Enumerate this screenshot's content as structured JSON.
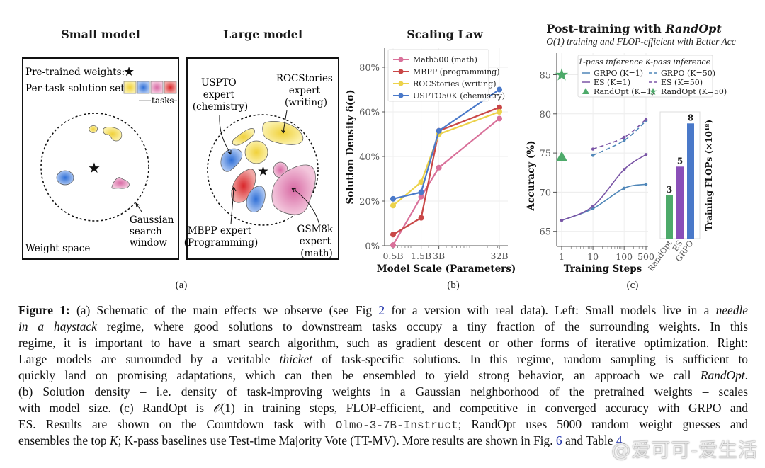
{
  "panels": {
    "small_model": {
      "title": "Small model",
      "legend_pretrained": "Pre-trained weights:",
      "legend_solution": "Per-task solution set:",
      "tasks_label": "tasks",
      "task_colors": [
        "#f4dc4a",
        "#3b78d8",
        "#e07fb2",
        "#d9383a"
      ],
      "window_label": [
        "Gaussian",
        "search",
        "window"
      ],
      "space_label": "Weight space"
    },
    "large_model": {
      "title": "Large model",
      "annotations": {
        "uspto": [
          "USPTO",
          "expert",
          "(chemistry)"
        ],
        "rocstories": [
          "ROCStories",
          "expert",
          "(writing)"
        ],
        "mbpp": [
          "MBPP expert",
          "(Programming)"
        ],
        "gsm8k": [
          "GSM8k",
          "expert",
          "(math)"
        ]
      }
    },
    "panel_a_label": "(a)",
    "panel_b_label": "(b)",
    "panel_c_label": "(c)"
  },
  "chart_data": [
    {
      "type": "line",
      "title": "Scaling Law",
      "xlabel": "Model Scale (Parameters)",
      "ylabel": "Solution Density δ(σ)",
      "x_scale": "log",
      "categories": [
        "0.5B",
        "1.5B",
        "3B",
        "32B"
      ],
      "x": [
        0.5,
        1.5,
        3,
        32
      ],
      "ylim": [
        0,
        88
      ],
      "yticks": [
        0,
        20,
        40,
        60,
        80
      ],
      "ytick_labels": [
        "0%",
        "20%",
        "40%",
        "60%",
        "80%"
      ],
      "grid": true,
      "legend": "top-left",
      "series": [
        {
          "name": "Math500 (math)",
          "color": "#d9719a",
          "values": [
            0.3,
            22,
            35,
            57
          ]
        },
        {
          "name": "MBPP (programming)",
          "color": "#c94747",
          "values": [
            5,
            12.5,
            51.5,
            62
          ]
        },
        {
          "name": "ROCStories (writing)",
          "color": "#ecd24a",
          "values": [
            18,
            28.5,
            50,
            60
          ]
        },
        {
          "name": "USPTO50K (chemistry)",
          "color": "#4a79c9",
          "values": [
            21,
            24,
            51.5,
            70
          ]
        }
      ]
    },
    {
      "type": "line",
      "title": "Post-training with RandOpt",
      "title_plain": "Post-training with ",
      "title_italic": "RandOpt",
      "subtitle": "O(1) training and FLOP-efficient with Better Acc",
      "xlabel": "Training Steps",
      "ylabel": "Accuracy (%)",
      "x_scale": "log",
      "x": [
        1,
        10,
        100,
        500
      ],
      "xtick_labels": [
        "1",
        "10",
        "100",
        "500"
      ],
      "ylim": [
        63,
        87
      ],
      "yticks": [
        65,
        70,
        75,
        80,
        85
      ],
      "grid": true,
      "legend": "top",
      "legend_headers": [
        "1-pass inference",
        "K-pass inference"
      ],
      "series": [
        {
          "name": "GRPO (K=1)",
          "color": "#4f86b8",
          "style": "solid",
          "x": [
            1,
            10,
            100,
            500
          ],
          "values": [
            66.4,
            67.9,
            70.5,
            71.0
          ]
        },
        {
          "name": "ES (K=1)",
          "color": "#7a55a6",
          "style": "solid",
          "x": [
            1,
            10,
            100,
            500
          ],
          "values": [
            66.4,
            68.2,
            72.9,
            74.8
          ]
        },
        {
          "name": "RandOpt (K=1)",
          "color": "#4daa6a",
          "style": "triangle",
          "x": [
            1
          ],
          "values": [
            74.5
          ]
        },
        {
          "name": "GRPO (K=50)",
          "color": "#4f86b8",
          "style": "dashed",
          "x": [
            10,
            100,
            500
          ],
          "values": [
            74.7,
            76.6,
            79.1
          ]
        },
        {
          "name": "ES (K=50)",
          "color": "#7a55a6",
          "style": "dashed",
          "x": [
            10,
            100,
            500
          ],
          "values": [
            75.5,
            77.0,
            79.3
          ]
        },
        {
          "name": "RandOpt (K=50)",
          "color": "#4daa6a",
          "style": "star",
          "x": [
            1
          ],
          "values": [
            85.0
          ]
        }
      ]
    },
    {
      "type": "bar",
      "title": "",
      "ylabel": "Training FLOPs (×10¹⁸)",
      "categories": [
        "RandOpt",
        "ES",
        "GRPO"
      ],
      "values": [
        3,
        5,
        8
      ],
      "colors": [
        "#4daa6a",
        "#8a4fb8",
        "#4a79c9"
      ],
      "data_labels": [
        "3",
        "5",
        "8"
      ],
      "ylim": [
        0,
        8.8
      ]
    }
  ],
  "caption": {
    "lines": [
      [
        {
          "t": "Figure 1:",
          "s": "b"
        },
        {
          "t": " (a) Schematic of the main effects we observe (see Fig "
        },
        {
          "t": "2",
          "s": "link"
        },
        {
          "t": " for a version with real data). Left: Small models live in a "
        },
        {
          "t": "needle",
          "s": "i"
        }
      ],
      [
        {
          "t": "in a haystack",
          "s": "i"
        },
        {
          "t": " regime, where good solutions to downstream tasks occupy a tiny fraction of the surrounding weights. In this"
        }
      ],
      [
        {
          "t": "regime, it is important to have a smart search algorithm, such as gradient descent or other forms of iterative optimization. Right:"
        }
      ],
      [
        {
          "t": "Large models are surrounded by a veritable "
        },
        {
          "t": "thicket",
          "s": "i"
        },
        {
          "t": " of task-specific solutions. In this regime, random sampling is sufficient to"
        }
      ],
      [
        {
          "t": "quickly land on promising adaptations, which can then be ensembled to yield strong behavior, an approach we call "
        },
        {
          "t": "RandOpt",
          "s": "i"
        },
        {
          "t": "."
        }
      ],
      [
        {
          "t": "(b) Solution density – i.e. density of task-improving weights in a Gaussian neighborhood of the pretrained weights – scales"
        }
      ],
      [
        {
          "t": "with model size. (c) RandOpt is "
        },
        {
          "t": "𝒪",
          "s": "i"
        },
        {
          "t": "(1) in training steps, FLOP-efficient, and competitive in converged accuracy with GRPO and"
        }
      ],
      [
        {
          "t": "ES. Results are shown on the Countdown task with "
        },
        {
          "t": "Olmo-3-7B-Instruct",
          "s": "mono"
        },
        {
          "t": "; RandOpt uses 5000 random weight guesses and"
        }
      ],
      [
        {
          "t": "ensembles the top "
        },
        {
          "t": "K",
          "s": "i"
        },
        {
          "t": "; K-pass baselines use Test-time Majority Vote (TT-MV). More results are shown in Fig. "
        },
        {
          "t": "6",
          "s": "link"
        },
        {
          "t": " and Table "
        },
        {
          "t": "4",
          "s": "link"
        },
        {
          "t": "."
        }
      ]
    ]
  },
  "watermark": "@爱可可-爱生活"
}
